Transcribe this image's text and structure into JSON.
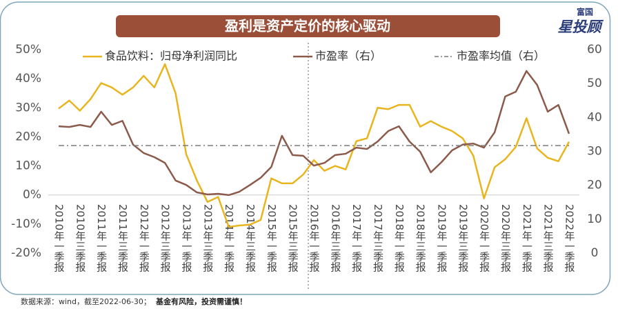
{
  "chart_data": {
    "type": "line",
    "title": "盈利是资产定价的核心驱动",
    "logo": {
      "top": "富国",
      "main": "星投顾"
    },
    "source": "数据来源：wind，截至2022-06-30；",
    "disclaimer": "基金有风险，投资需谨慎！",
    "categories": [
      "2010年一季报",
      null,
      "2010年三季报",
      null,
      "2011年一季报",
      null,
      "2011年三季报",
      null,
      "2012年一季报",
      null,
      "2012年三季报",
      null,
      "2013年一季报",
      null,
      "2013年三季报",
      null,
      "2014年一季报",
      null,
      "2014年三季报",
      null,
      "2015年一季报",
      null,
      "2015年三季报",
      null,
      "2016年一季报",
      null,
      "2016年三季报",
      null,
      "2017年一季报",
      null,
      "2017年三季报",
      null,
      "2018年一季报",
      null,
      "2018年三季报",
      null,
      "2019年一季报",
      null,
      "2019年三季报",
      null,
      "2020年一季报",
      null,
      "2020年三季报",
      null,
      "2021年一季报",
      null,
      "2021年三季报",
      null,
      "2022年一季报"
    ],
    "ylim": [
      -20,
      50
    ],
    "yticks": [
      {
        "value": -20,
        "label": "-20%"
      },
      {
        "value": -10,
        "label": "-10%"
      },
      {
        "value": 0,
        "label": "0%"
      },
      {
        "value": 10,
        "label": "10%"
      },
      {
        "value": 20,
        "label": "20%"
      },
      {
        "value": 30,
        "label": "30%"
      },
      {
        "value": 40,
        "label": "40%"
      },
      {
        "value": 50,
        "label": "50%"
      }
    ],
    "y2lim": [
      0,
      60
    ],
    "y2ticks": [
      0,
      10,
      20,
      30,
      40,
      50,
      60
    ],
    "series": [
      {
        "name": "食品饮料：归母净利润同比",
        "color": "#e8b51f",
        "axis": "y",
        "values": [
          29.7,
          32.5,
          29,
          33,
          38.5,
          37,
          34.5,
          37,
          41,
          37,
          45,
          35,
          14,
          5,
          -2.4,
          -0.7,
          -11,
          -10.5,
          -10.2,
          -8.6,
          5.7,
          4,
          4,
          7,
          12,
          8.3,
          10,
          8.8,
          18.5,
          19.5,
          30,
          29.5,
          31,
          31,
          23.5,
          25.4,
          23.5,
          22,
          19.5,
          13.5,
          -1.2,
          9.5,
          12.3,
          16.6,
          26.4,
          16,
          12.8,
          11.6,
          18.3
        ]
      },
      {
        "name": "市盈率（右）",
        "color": "#8b5a4a",
        "axis": "y2",
        "values": [
          37.4,
          37.2,
          37.8,
          37.2,
          41.7,
          37.8,
          39,
          32,
          29.5,
          28.3,
          26.6,
          21.4,
          20.1,
          17.9,
          17.3,
          17.5,
          17.1,
          18.1,
          20.1,
          22.2,
          25.4,
          34.6,
          28.9,
          28.7,
          25.8,
          26.6,
          28.9,
          29.3,
          31.1,
          30.7,
          32.9,
          36,
          37.4,
          32.9,
          29.9,
          23.8,
          26.8,
          30.3,
          32,
          32.3,
          31.1,
          35.6,
          46.2,
          47.6,
          53.7,
          49.6,
          41.7,
          43.7,
          35.2
        ]
      },
      {
        "name": "市盈率均值（右）",
        "color": "#7a7a7a",
        "axis": "y2",
        "line_style": "dashdot",
        "value": 31.7
      }
    ]
  }
}
